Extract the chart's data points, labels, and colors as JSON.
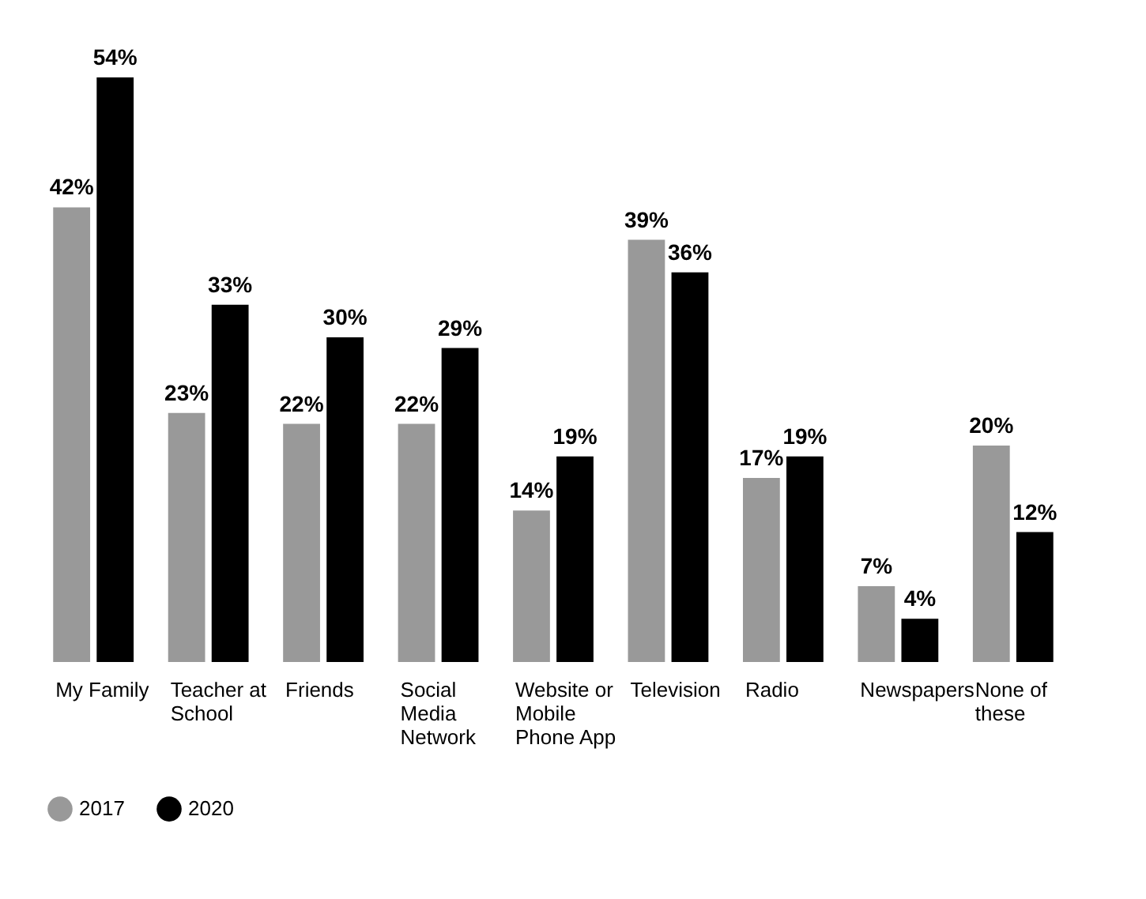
{
  "chart_data": {
    "type": "bar",
    "categories": [
      "My Family",
      "Teacher at School",
      "Friends",
      "Social Media Network",
      "Website or Mobile Phone App",
      "Television",
      "Radio",
      "Newspapers",
      "None of these"
    ],
    "series": [
      {
        "name": "2017",
        "color": "#999999",
        "values": [
          42,
          23,
          22,
          22,
          14,
          39,
          17,
          7,
          20
        ],
        "value_labels": [
          "42%",
          "23%",
          "22%",
          "22%",
          "14%",
          "39%",
          "17%",
          "7%",
          "20%"
        ]
      },
      {
        "name": "2020",
        "color": "#000000",
        "values": [
          54,
          33,
          30,
          29,
          19,
          36,
          19,
          4,
          12
        ],
        "value_labels": [
          "54%",
          "33%",
          "30%",
          "29%",
          "19%",
          "36%",
          "19%",
          "4%",
          "12%"
        ]
      }
    ],
    "legend": "bottom left"
  }
}
